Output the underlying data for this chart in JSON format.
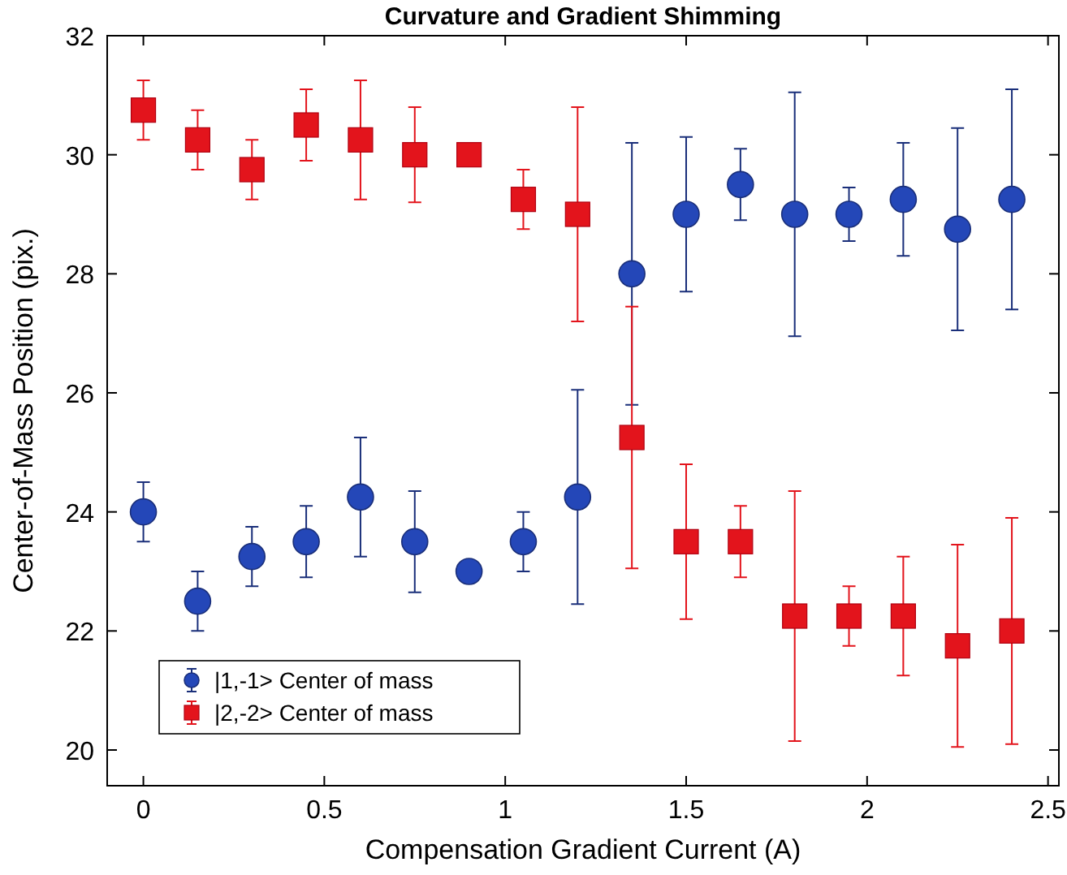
{
  "chart_data": {
    "type": "scatter",
    "title": "Curvature and Gradient Shimming",
    "xlabel": "Compensation Gradient Current (A)",
    "ylabel": "Center-of-Mass Position (pix.)",
    "x": [
      0,
      0.15,
      0.3,
      0.45,
      0.6,
      0.75,
      0.9,
      1.05,
      1.2,
      1.35,
      1.5,
      1.65,
      1.8,
      1.95,
      2.1,
      2.25,
      2.4
    ],
    "series": [
      {
        "name": "|1,-1> Center of mass",
        "color": "#2447b8",
        "marker": "circle",
        "values": [
          24.0,
          22.5,
          23.25,
          23.5,
          24.25,
          23.5,
          23.0,
          23.5,
          24.25,
          28.0,
          29.0,
          29.5,
          29.0,
          29.0,
          29.25,
          28.75,
          29.25
        ],
        "errors": [
          0.5,
          0.5,
          0.5,
          0.6,
          1.0,
          0.85,
          null,
          0.5,
          1.8,
          2.2,
          1.3,
          0.6,
          2.05,
          0.45,
          0.95,
          1.7,
          1.85
        ]
      },
      {
        "name": "|2,-2> Center of mass",
        "color": "#e3141c",
        "marker": "square",
        "values": [
          30.75,
          30.25,
          29.75,
          30.5,
          30.25,
          30.0,
          30.0,
          29.25,
          29.0,
          25.25,
          23.5,
          23.5,
          22.25,
          22.25,
          22.25,
          21.75,
          22.0
        ],
        "errors": [
          0.5,
          0.5,
          0.5,
          0.6,
          1.0,
          0.8,
          null,
          0.5,
          1.8,
          2.2,
          1.3,
          0.6,
          2.1,
          0.5,
          1.0,
          1.7,
          1.9
        ]
      }
    ],
    "xlim": [
      -0.1,
      2.53
    ],
    "ylim": [
      19.4,
      32
    ],
    "xticks": [
      0,
      0.5,
      1,
      1.5,
      2,
      2.5
    ],
    "yticks": [
      20,
      22,
      24,
      26,
      28,
      30,
      32
    ],
    "grid": false,
    "legend": "bottom left"
  }
}
